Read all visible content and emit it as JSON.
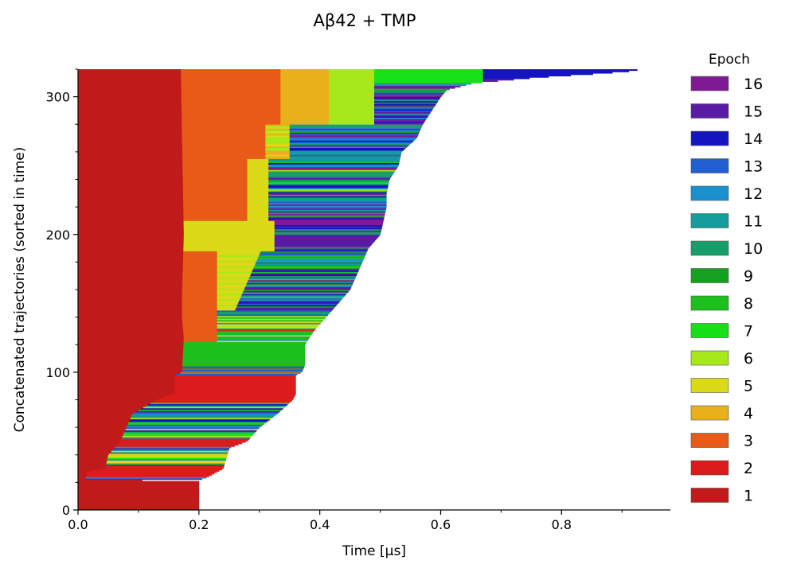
{
  "chart_data": {
    "type": "bar",
    "orientation": "horizontal-stacked",
    "title": "Aβ42 + TMP",
    "xlabel": "Time [μs]",
    "ylabel": "Concatenated trajectories (sorted in time)",
    "xlim": [
      0,
      0.98
    ],
    "ylim": [
      0,
      320
    ],
    "xticks": [
      0.0,
      0.2,
      0.4,
      0.6,
      0.8
    ],
    "xtick_labels": [
      "0.0",
      "0.2",
      "0.4",
      "0.6",
      "0.8"
    ],
    "yticks": [
      0,
      100,
      200,
      300
    ],
    "ytick_labels": [
      "0",
      "100",
      "200",
      "300"
    ],
    "legend": {
      "title": "Epoch",
      "placement": "right",
      "entries": [
        {
          "label": "16",
          "color": "#7e1a93"
        },
        {
          "label": "15",
          "color": "#5b1aa3"
        },
        {
          "label": "14",
          "color": "#1515c0"
        },
        {
          "label": "13",
          "color": "#1f5fd0"
        },
        {
          "label": "12",
          "color": "#1a90cf"
        },
        {
          "label": "11",
          "color": "#159c9c"
        },
        {
          "label": "10",
          "color": "#189e6a"
        },
        {
          "label": "9",
          "color": "#16a020"
        },
        {
          "label": "8",
          "color": "#1cc01c"
        },
        {
          "label": "7",
          "color": "#18e018"
        },
        {
          "label": "6",
          "color": "#a6e81a"
        },
        {
          "label": "5",
          "color": "#dada18"
        },
        {
          "label": "4",
          "color": "#e8b01a"
        },
        {
          "label": "3",
          "color": "#e85a18"
        },
        {
          "label": "2",
          "color": "#dc1c1c"
        },
        {
          "label": "1",
          "color": "#c01a1a"
        }
      ]
    },
    "series": [
      {
        "name": "1",
        "values": [
          [
            0,
            0.2
          ],
          [
            0,
            0.09
          ],
          [
            0,
            0.17
          ],
          [
            0,
            0.175
          ],
          [
            0,
            0.172
          ],
          [
            0,
            0.17
          ]
        ]
      },
      {
        "name": "2",
        "values": [
          [
            0.09,
            0.36
          ],
          [
            0.17,
            0.25
          ]
        ]
      },
      {
        "name": "3",
        "values": [
          [
            0.17,
            0.35
          ],
          [
            0.17,
            0.31
          ],
          [
            0.17,
            0.23
          ]
        ]
      },
      {
        "name": "4",
        "values": [
          [
            0.335,
            0.415
          ]
        ]
      },
      {
        "name": "5",
        "values": [
          [
            0.23,
            0.335
          ],
          [
            0.31,
            0.345
          ]
        ]
      },
      {
        "name": "6",
        "values": [
          [
            0.415,
            0.49
          ]
        ]
      },
      {
        "name": "7",
        "values": [
          [
            0.49,
            0.67
          ]
        ]
      },
      {
        "name": "8",
        "values": [
          [
            0.175,
            0.375
          ]
        ]
      },
      {
        "name": "15",
        "values": [
          [
            0.3,
            0.5
          ],
          [
            0.33,
            0.51
          ]
        ]
      },
      {
        "name": "16",
        "values": [
          [
            0.67,
            0.925
          ]
        ]
      }
    ]
  }
}
